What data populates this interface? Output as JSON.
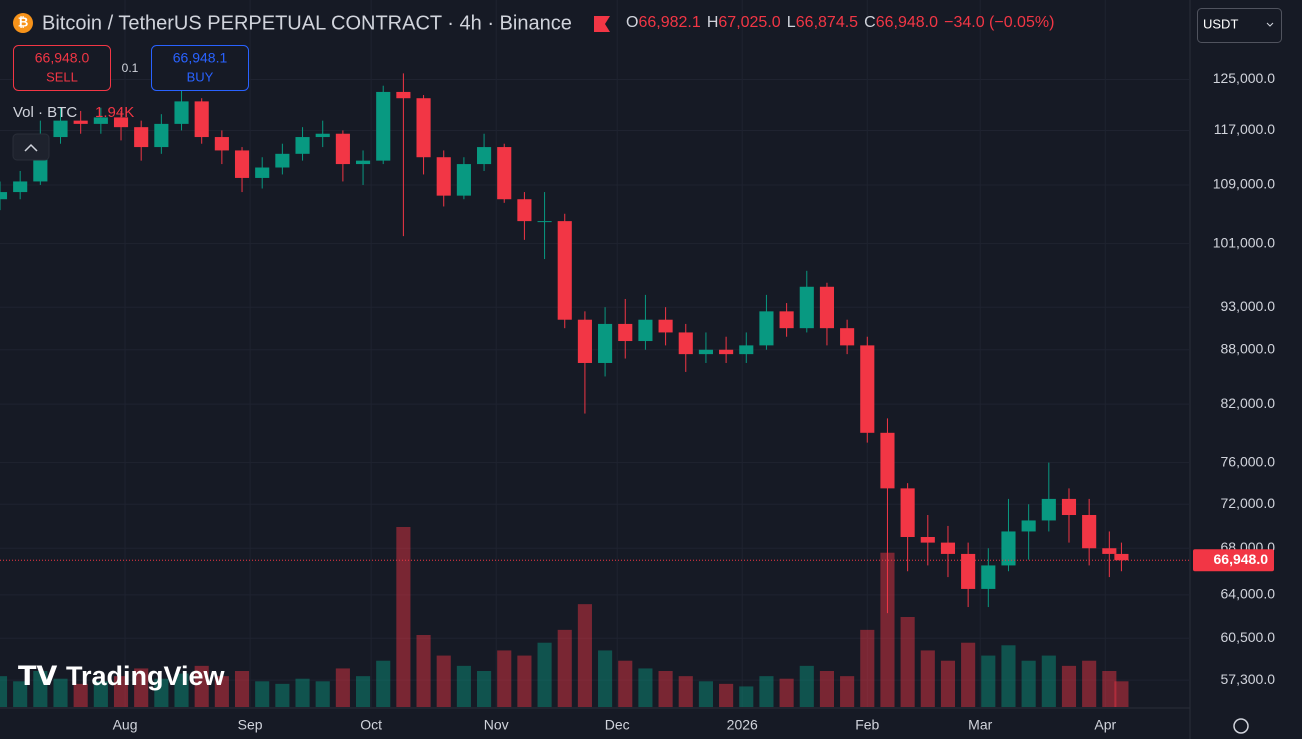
{
  "header": {
    "symbol": "Bitcoin / TetherUS PERPETUAL CONTRACT · 4h · Binance",
    "ohlc": [
      {
        "key": "O",
        "value": "66,982.1"
      },
      {
        "key": "H",
        "value": "67,025.0"
      },
      {
        "key": "L",
        "value": "66,874.5"
      },
      {
        "key": "C",
        "value": "66,948.0"
      }
    ],
    "change": "−34.0 (−0.05%)",
    "sell": {
      "price": "66,948.0",
      "label": "SELL"
    },
    "quantity": "0.1",
    "buy": {
      "price": "66,948.1",
      "label": "BUY"
    },
    "volume": {
      "label": "Vol · BTC",
      "value": "1.94K"
    },
    "currency": "USDT",
    "logo": "TradingView"
  },
  "chart_data": {
    "type": "candlestick",
    "log_scale": true,
    "grid": true,
    "up_color": "#089981",
    "down_color": "#f23645",
    "ylim": [
      55330,
      138600
    ],
    "yticks": [
      {
        "value": 125000,
        "label": "125,000.0"
      },
      {
        "value": 117000,
        "label": "117,000.0"
      },
      {
        "value": 109000,
        "label": "109,000.0"
      },
      {
        "value": 101000,
        "label": "101,000.0"
      },
      {
        "value": 93000,
        "label": "93,000.0"
      },
      {
        "value": 88000,
        "label": "88,000.0"
      },
      {
        "value": 82000,
        "label": "82,000.0"
      },
      {
        "value": 76000,
        "label": "76,000.0"
      },
      {
        "value": 72000,
        "label": "72,000.0"
      },
      {
        "value": 68000,
        "label": "68,000.0"
      },
      {
        "value": 64000,
        "label": "64,000.0"
      },
      {
        "value": 60500,
        "label": "60,500.0"
      },
      {
        "value": 57300,
        "label": "57,300.0"
      }
    ],
    "xlim": [
      0,
      295
    ],
    "xticks": [
      {
        "value": 31,
        "label": "Aug"
      },
      {
        "value": 62,
        "label": "Sep"
      },
      {
        "value": 92,
        "label": "Oct"
      },
      {
        "value": 123,
        "label": "Nov"
      },
      {
        "value": 153,
        "label": "Dec"
      },
      {
        "value": 184,
        "label": "2026"
      },
      {
        "value": 215,
        "label": "Feb"
      },
      {
        "value": 243,
        "label": "Mar"
      },
      {
        "value": 274,
        "label": "Apr"
      }
    ],
    "x": [
      0,
      5,
      10,
      15,
      20,
      25,
      30,
      35,
      40,
      45,
      50,
      55,
      60,
      65,
      70,
      75,
      80,
      85,
      90,
      95,
      100,
      105,
      110,
      115,
      120,
      125,
      130,
      135,
      140,
      145,
      150,
      155,
      160,
      165,
      170,
      175,
      180,
      185,
      190,
      195,
      200,
      205,
      210,
      215,
      220,
      225,
      230,
      235,
      240,
      245,
      250,
      255,
      260,
      265,
      270,
      275,
      278
    ],
    "open": [
      107000,
      108000,
      109500,
      116000,
      118500,
      118000,
      119000,
      117500,
      114500,
      118000,
      121500,
      116000,
      114000,
      110000,
      111500,
      113500,
      116000,
      116500,
      112000,
      112500,
      123000,
      122000,
      113000,
      107500,
      112000,
      114500,
      107000,
      104000,
      104000,
      91500,
      86500,
      91000,
      89000,
      91500,
      90000,
      87500,
      88000,
      87500,
      88500,
      92500,
      90500,
      95500,
      90500,
      88500,
      79000,
      73500,
      69000,
      68500,
      67500,
      64500,
      66500,
      69500,
      70500,
      72500,
      71000,
      68000,
      67500
    ],
    "high": [
      109500,
      111000,
      118500,
      120500,
      120000,
      120500,
      120000,
      118500,
      119500,
      124000,
      122000,
      117000,
      114500,
      113000,
      115000,
      117500,
      118500,
      117000,
      114000,
      124000,
      126000,
      122500,
      114000,
      113000,
      116500,
      115000,
      108000,
      108000,
      105000,
      92500,
      93000,
      94000,
      94500,
      93000,
      91000,
      90000,
      89500,
      90000,
      94500,
      93500,
      97500,
      96000,
      91500,
      89500,
      80500,
      74000,
      71000,
      70000,
      68500,
      68000,
      72500,
      72000,
      76000,
      73500,
      72500,
      69500,
      68500
    ],
    "low": [
      105500,
      107000,
      109000,
      115000,
      116500,
      116500,
      115500,
      112500,
      113500,
      117000,
      115000,
      112000,
      108000,
      108500,
      110500,
      112500,
      114500,
      109500,
      109000,
      112000,
      102000,
      110500,
      106000,
      107000,
      111000,
      106500,
      101500,
      99000,
      90500,
      81000,
      85000,
      87000,
      88000,
      88500,
      85500,
      86500,
      86500,
      86500,
      88000,
      89500,
      90000,
      88500,
      87500,
      78000,
      62500,
      66000,
      66500,
      65500,
      63000,
      63000,
      66000,
      67000,
      69500,
      68500,
      66500,
      65500,
      66000
    ],
    "close": [
      108000,
      109500,
      116000,
      118500,
      118000,
      119000,
      117500,
      114500,
      118000,
      121500,
      116000,
      114000,
      110000,
      111500,
      113500,
      116000,
      116500,
      112000,
      112500,
      123000,
      122000,
      113000,
      107500,
      112000,
      114500,
      107000,
      104000,
      104000,
      91500,
      86500,
      91000,
      89000,
      91500,
      90000,
      87500,
      88000,
      87500,
      88500,
      92500,
      90500,
      95500,
      90500,
      88500,
      79000,
      73500,
      69000,
      68500,
      67500,
      64500,
      66500,
      69500,
      70500,
      72500,
      71000,
      68000,
      67500,
      66948
    ],
    "volume": [
      12,
      10,
      14,
      11,
      9,
      10,
      12,
      15,
      11,
      13,
      16,
      12,
      14,
      10,
      9,
      11,
      10,
      15,
      12,
      18,
      70,
      28,
      20,
      16,
      14,
      22,
      20,
      25,
      30,
      40,
      22,
      18,
      15,
      14,
      12,
      10,
      9,
      8,
      12,
      11,
      16,
      14,
      12,
      30,
      60,
      35,
      22,
      18,
      25,
      20,
      24,
      18,
      20,
      16,
      18,
      14,
      10
    ],
    "last_price": {
      "value": 66948,
      "label": "66,948.0"
    }
  }
}
